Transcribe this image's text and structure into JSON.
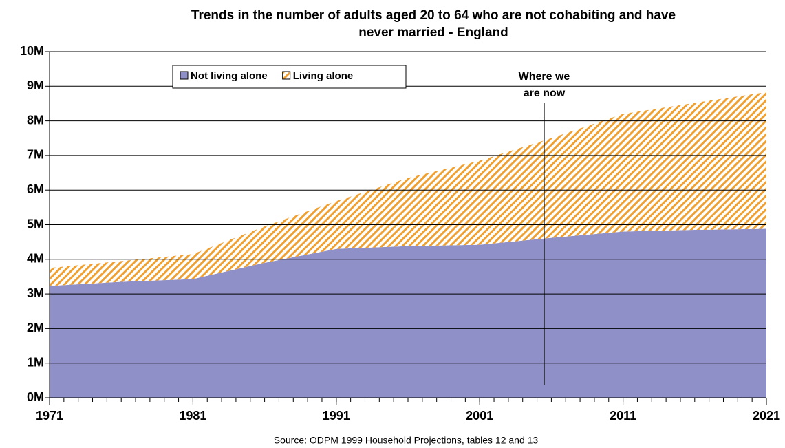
{
  "chart_data": {
    "type": "area",
    "stacked": true,
    "title": [
      "Trends in the number of adults aged 20 to 64 who are not cohabiting and have",
      "never married - England"
    ],
    "source": "Source: ODPM 1999 Household Projections, tables 12 and 13",
    "x": [
      1971,
      1976,
      1981,
      1986,
      1991,
      1996,
      2001,
      2006,
      2011,
      2016,
      2021
    ],
    "series": [
      {
        "name": "Not living alone",
        "color": "#9090c8",
        "values": [
          3.23,
          3.35,
          3.43,
          3.9,
          4.3,
          4.38,
          4.42,
          4.62,
          4.8,
          4.85,
          4.88
        ]
      },
      {
        "name": "Living alone",
        "color": "#f0a030",
        "hatch": true,
        "values": [
          0.52,
          0.6,
          0.72,
          1.05,
          1.38,
          1.97,
          2.43,
          2.88,
          3.4,
          3.67,
          3.95
        ]
      }
    ],
    "xlim": [
      1971,
      2021
    ],
    "xticks": [
      1971,
      1981,
      1991,
      2001,
      2011,
      2021
    ],
    "ylim": [
      0,
      10
    ],
    "yticks": [
      {
        "value": 0,
        "label": "0M"
      },
      {
        "value": 1,
        "label": "1M"
      },
      {
        "value": 2,
        "label": "2M"
      },
      {
        "value": 3,
        "label": "3M"
      },
      {
        "value": 4,
        "label": "4M"
      },
      {
        "value": 5,
        "label": "5M"
      },
      {
        "value": 6,
        "label": "6M"
      },
      {
        "value": 7,
        "label": "7M"
      },
      {
        "value": 8,
        "label": "8M"
      },
      {
        "value": 9,
        "label": "9M"
      },
      {
        "value": 10,
        "label": "10M"
      }
    ],
    "grid": true,
    "annotation": {
      "lines": [
        "Where we",
        "are now"
      ],
      "x": 2005.5
    }
  }
}
